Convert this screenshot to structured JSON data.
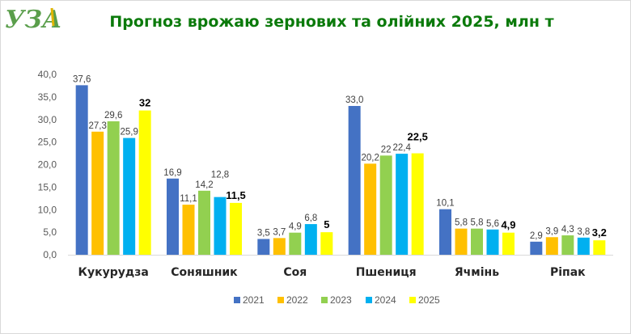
{
  "logo_text": "УЗА",
  "chart_data": {
    "type": "bar",
    "title": "Прогноз врожаю зернових та олійних 2025, млн т",
    "xlabel": "",
    "ylabel": "",
    "ylim": [
      0,
      40
    ],
    "yticks": [
      "0,0",
      "5,0",
      "10,0",
      "15,0",
      "20,0",
      "25,0",
      "30,0",
      "35,0",
      "40,0"
    ],
    "grid": false,
    "legend": "bottom",
    "categories": [
      "Кукурудза",
      "Соняшник",
      "Соя",
      "Пшениця",
      "Ячмінь",
      "Ріпак"
    ],
    "series": [
      {
        "name": "2021",
        "color": "#4472c4",
        "values": [
          37.6,
          16.9,
          3.5,
          33.0,
          10.1,
          2.9
        ],
        "labels": [
          "37,6",
          "16,9",
          "3,5",
          "33,0",
          "10,1",
          "2,9"
        ]
      },
      {
        "name": "2022",
        "color": "#ffc000",
        "values": [
          27.3,
          11.1,
          3.7,
          20.2,
          5.8,
          3.9
        ],
        "labels": [
          "27,3",
          "11,1",
          "3,7",
          "20,2",
          "5,8",
          "3,9"
        ]
      },
      {
        "name": "2023",
        "color": "#92d050",
        "values": [
          29.6,
          14.2,
          4.9,
          22,
          5.8,
          4.3
        ],
        "labels": [
          "29,6",
          "14,2",
          "4,9",
          "22",
          "5,8",
          "4,3"
        ]
      },
      {
        "name": "2024",
        "color": "#00b0f0",
        "values": [
          25.9,
          12.8,
          6.8,
          22.4,
          5.6,
          3.8
        ],
        "labels": [
          "25,9",
          "12,8",
          "6,8",
          "22,4",
          "5,6",
          "3,8"
        ]
      },
      {
        "name": "2025",
        "color": "#ffff00",
        "values": [
          32,
          11.5,
          5,
          22.5,
          4.9,
          3.2
        ],
        "labels": [
          "32",
          "11,5",
          "5",
          "22,5",
          "4,9",
          "3,2"
        ],
        "bold_labels": true
      }
    ]
  }
}
